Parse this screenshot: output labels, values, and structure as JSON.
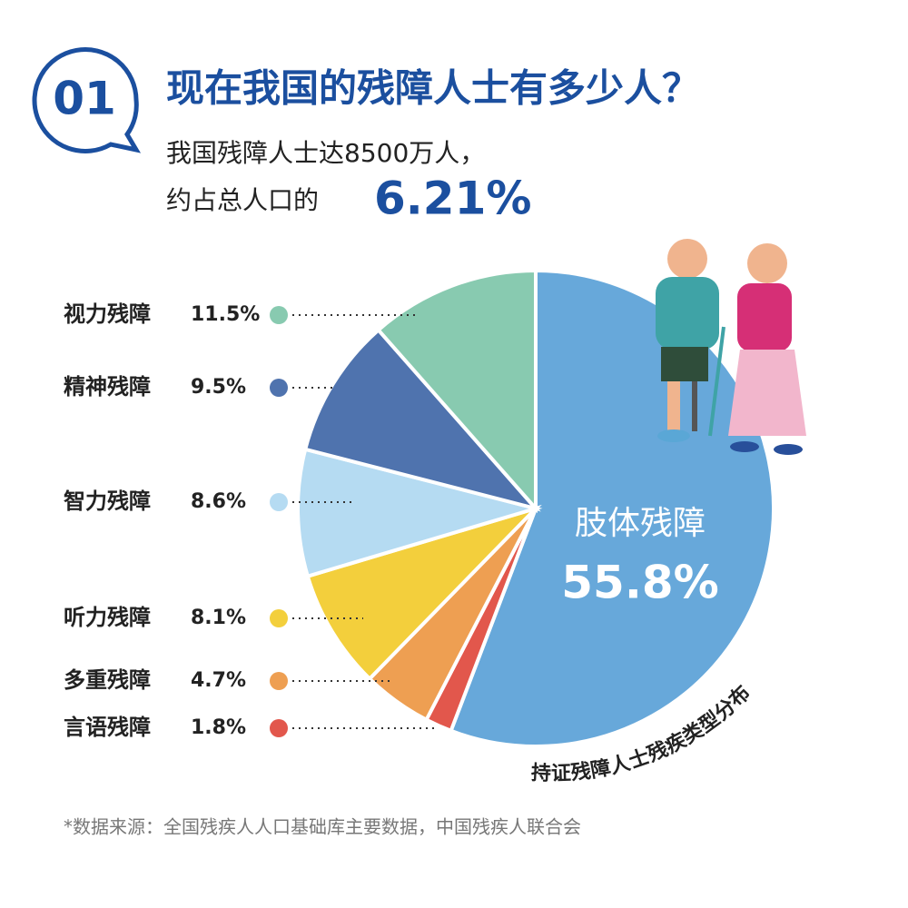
{
  "header": {
    "number": "01",
    "title": "现在我国的残障人士有多少人？",
    "line1": "我国残障人士达8500万人，",
    "line2": "约占总人口的",
    "highlight": "6.21%"
  },
  "chart_data": {
    "type": "pie",
    "categories": [
      "肢体残障",
      "言语残障",
      "多重残障",
      "听力残障",
      "智力残障",
      "精神残障",
      "视力残障"
    ],
    "values": [
      55.8,
      1.8,
      4.7,
      8.1,
      8.6,
      9.5,
      11.5
    ],
    "value_labels": [
      "55.8%",
      "1.8%",
      "4.7%",
      "8.1%",
      "8.6%",
      "9.5%",
      "11.5%"
    ],
    "colors": [
      "#67a8da",
      "#e2574c",
      "#ee9f52",
      "#f3cf3c",
      "#b5dbf2",
      "#4f73ae",
      "#88cab0"
    ],
    "caption": "持证残障人士残疾类型分布"
  },
  "footer": {
    "source": "*数据来源：全国残疾人人口基础库主要数据，中国残疾人联合会"
  }
}
